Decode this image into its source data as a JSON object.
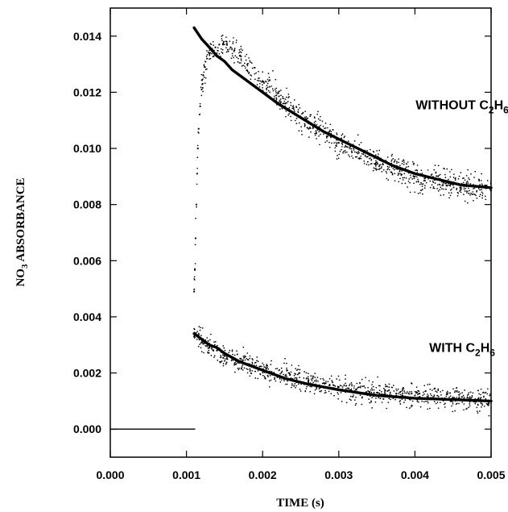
{
  "chart_data": {
    "type": "scatter",
    "xlabel": "TIME (s)",
    "ylabel": {
      "main": "NO",
      "sub": "3",
      "rest": " ABSORBANCE"
    },
    "xlim": [
      0.0,
      0.005
    ],
    "ylim": [
      -0.001,
      0.015
    ],
    "x_ticks": [
      0.0,
      0.001,
      0.002,
      0.003,
      0.004,
      0.005
    ],
    "x_tick_labels": [
      "0.000",
      "0.001",
      "0.002",
      "0.003",
      "0.004",
      "0.005"
    ],
    "y_ticks": [
      0.0,
      0.002,
      0.004,
      0.006,
      0.008,
      0.01,
      0.012,
      0.014
    ],
    "y_tick_labels": [
      "0.000",
      "0.002",
      "0.004",
      "0.006",
      "0.008",
      "0.010",
      "0.012",
      "0.014"
    ],
    "grid": false,
    "annotations": [
      {
        "id": "without",
        "parts": [
          {
            "t": "WITHOUT C"
          },
          {
            "t": "2",
            "sub": true
          },
          {
            "t": "H"
          },
          {
            "t": "6",
            "sub": true
          }
        ],
        "x": 0.00462,
        "y": 0.0114
      },
      {
        "id": "with",
        "parts": [
          {
            "t": "WITH C"
          },
          {
            "t": "2",
            "sub": true
          },
          {
            "t": "H"
          },
          {
            "t": "6",
            "sub": true
          }
        ],
        "x": 0.00462,
        "y": 0.00275
      }
    ],
    "series": [
      {
        "id": "without_c2h6",
        "kind": "points",
        "x": [
          0.0011,
          0.00111,
          0.00112,
          0.00113,
          0.00114,
          0.00115,
          0.00116,
          0.00118,
          0.0012,
          0.00122,
          0.00124,
          0.00127,
          0.0013,
          0.00134,
          0.00138,
          0.00143,
          0.00148,
          0.00153,
          0.00158,
          0.00163,
          0.0017,
          0.0018,
          0.002,
          0.0023,
          0.0026,
          0.003,
          0.0035,
          0.004,
          0.0045,
          0.005
        ],
        "y": [
          0.0049,
          0.0057,
          0.0068,
          0.008,
          0.0091,
          0.01,
          0.0107,
          0.0115,
          0.0121,
          0.0126,
          0.0129,
          0.0132,
          0.0134,
          0.0135,
          0.0136,
          0.0137,
          0.0137,
          0.0137,
          0.0136,
          0.0135,
          0.0133,
          0.013,
          0.0124,
          0.0116,
          0.0109,
          0.0102,
          0.0095,
          0.009,
          0.0087,
          0.0085
        ],
        "noise": 0.00045
      },
      {
        "id": "without_c2h6_fit",
        "kind": "line",
        "x": [
          0.0011,
          0.0012,
          0.0013,
          0.0014,
          0.0015,
          0.0016,
          0.0018,
          0.002,
          0.0022,
          0.0025,
          0.0028,
          0.0031,
          0.0034,
          0.0037,
          0.004,
          0.0043,
          0.0046,
          0.005
        ],
        "y": [
          0.0143,
          0.0139,
          0.0136,
          0.0133,
          0.0131,
          0.0128,
          0.0124,
          0.012,
          0.0116,
          0.0111,
          0.0106,
          0.0102,
          0.0098,
          0.0094,
          0.0091,
          0.0089,
          0.0087,
          0.0086
        ]
      },
      {
        "id": "with_c2h6",
        "kind": "points",
        "x": [
          0.0011,
          0.00115,
          0.0012,
          0.0013,
          0.0014,
          0.0015,
          0.0017,
          0.002,
          0.0023,
          0.0026,
          0.003,
          0.0035,
          0.004,
          0.0045,
          0.005
        ],
        "y": [
          0.0033,
          0.0033,
          0.0031,
          0.0029,
          0.0028,
          0.0026,
          0.0024,
          0.0021,
          0.0019,
          0.0017,
          0.0015,
          0.0013,
          0.0012,
          0.0011,
          0.001
        ],
        "noise": 0.0004
      },
      {
        "id": "with_c2h6_fit",
        "kind": "line",
        "x": [
          0.0011,
          0.0012,
          0.0013,
          0.0014,
          0.0015,
          0.0017,
          0.002,
          0.0023,
          0.0026,
          0.003,
          0.0035,
          0.004,
          0.0045,
          0.005
        ],
        "y": [
          0.0034,
          0.0032,
          0.003,
          0.0029,
          0.0027,
          0.0024,
          0.0021,
          0.0018,
          0.0016,
          0.0014,
          0.0012,
          0.0011,
          0.00105,
          0.001
        ]
      },
      {
        "id": "baseline",
        "kind": "line",
        "thin": true,
        "x": [
          0.0,
          0.00111
        ],
        "y": [
          0.0,
          0.0
        ]
      }
    ]
  }
}
